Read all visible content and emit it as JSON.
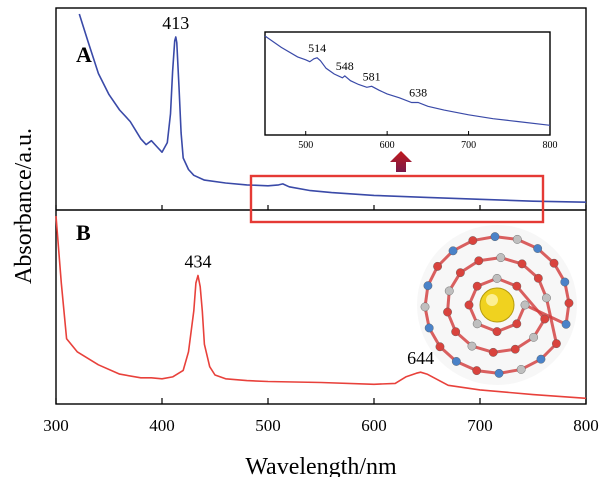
{
  "chart_data": {
    "type": "line",
    "xlabel": "Wavelength/nm",
    "ylabel": "Absorbance/a.u.",
    "xlim": [
      300,
      800
    ],
    "x_ticks": [
      "300",
      "400",
      "500",
      "600",
      "700",
      "800"
    ],
    "legend": "none",
    "grid": false,
    "panels": [
      {
        "label": "A",
        "color": "#3a4aa8",
        "peak_labels": [
          {
            "x": 413,
            "text": "413"
          }
        ],
        "x": [
          322,
          330,
          340,
          350,
          360,
          370,
          380,
          385,
          390,
          395,
          400,
          405,
          408,
          410,
          412,
          413,
          414,
          416,
          418,
          420,
          425,
          430,
          440,
          460,
          480,
          500,
          510,
          514,
          520,
          540,
          560,
          600,
          650,
          700,
          750,
          800
        ],
        "values": [
          1.0,
          0.86,
          0.69,
          0.58,
          0.5,
          0.44,
          0.35,
          0.32,
          0.34,
          0.31,
          0.28,
          0.33,
          0.48,
          0.7,
          0.86,
          0.88,
          0.85,
          0.62,
          0.38,
          0.25,
          0.19,
          0.16,
          0.135,
          0.12,
          0.11,
          0.105,
          0.11,
          0.115,
          0.1,
          0.08,
          0.07,
          0.055,
          0.045,
          0.035,
          0.025,
          0.02
        ]
      },
      {
        "label": "B",
        "color": "#e8413b",
        "peak_labels": [
          {
            "x": 434,
            "text": "434"
          },
          {
            "x": 644,
            "text": "644"
          }
        ],
        "x": [
          300,
          305,
          310,
          320,
          340,
          360,
          380,
          390,
          400,
          410,
          420,
          425,
          430,
          432,
          434,
          436,
          438,
          440,
          445,
          450,
          460,
          480,
          500,
          550,
          600,
          620,
          630,
          640,
          644,
          650,
          660,
          670,
          700,
          750,
          800
        ],
        "values": [
          1.0,
          0.64,
          0.34,
          0.27,
          0.2,
          0.15,
          0.13,
          0.13,
          0.125,
          0.135,
          0.17,
          0.27,
          0.49,
          0.64,
          0.68,
          0.62,
          0.49,
          0.31,
          0.19,
          0.145,
          0.125,
          0.115,
          0.11,
          0.105,
          0.095,
          0.1,
          0.135,
          0.155,
          0.16,
          0.15,
          0.12,
          0.09,
          0.065,
          0.04,
          0.02
        ]
      }
    ],
    "inset": {
      "xlim": [
        450,
        800
      ],
      "x_ticks": [
        "500",
        "600",
        "700",
        "800"
      ],
      "color": "#3a4aa8",
      "peak_labels": [
        {
          "x": 514,
          "text": "514"
        },
        {
          "x": 548,
          "text": "548"
        },
        {
          "x": 581,
          "text": "581"
        },
        {
          "x": 638,
          "text": "638"
        }
      ],
      "x": [
        450,
        470,
        490,
        500,
        505,
        510,
        514,
        518,
        525,
        535,
        545,
        548,
        555,
        565,
        575,
        581,
        590,
        600,
        615,
        630,
        638,
        650,
        670,
        700,
        730,
        760,
        800
      ],
      "values": [
        1.0,
        0.88,
        0.78,
        0.75,
        0.73,
        0.76,
        0.77,
        0.74,
        0.66,
        0.6,
        0.56,
        0.58,
        0.53,
        0.49,
        0.46,
        0.47,
        0.43,
        0.39,
        0.35,
        0.3,
        0.3,
        0.26,
        0.22,
        0.17,
        0.13,
        0.1,
        0.06
      ]
    }
  }
}
